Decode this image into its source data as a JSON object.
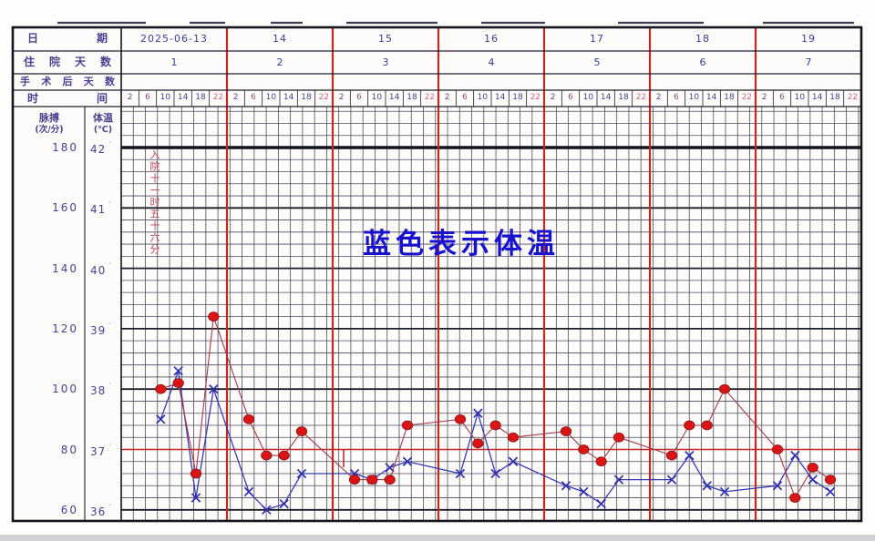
{
  "page": {
    "background": "#fdfdfb",
    "legend_text": "蓝色表示体温",
    "legend_color": "#1812cf"
  },
  "header": {
    "date_row_label": "日期",
    "hospital_days_label": "住院天数",
    "postop_days_label": "手术后天数",
    "time_row_label": "时间",
    "dates": [
      "2025-06-13",
      "14",
      "15",
      "16",
      "17",
      "18",
      "19"
    ],
    "hospital_days": [
      "1",
      "2",
      "3",
      "4",
      "5",
      "6",
      "7"
    ],
    "postop_days": [
      "",
      "",
      "",
      "",
      "",
      "",
      ""
    ],
    "time_slots": [
      "2",
      "6",
      "10",
      "14",
      "18",
      "22"
    ],
    "time_slot_colors": [
      "#6b4590",
      "#8a4a86",
      "#47408c",
      "#47408c",
      "#47408c",
      "#d4688e"
    ]
  },
  "axis": {
    "pulse_title": "脉搏",
    "pulse_unit": "(次/分)",
    "temp_title": "体温",
    "temp_unit": "(℃)",
    "pulse_ticks": [
      "180",
      "160",
      "140",
      "120",
      "100",
      "80",
      "60"
    ],
    "temp_ticks": [
      "42",
      "41",
      "40",
      "39",
      "38",
      "37",
      "36"
    ],
    "degree_mark": "˙"
  },
  "annotations": {
    "admission_note": "入院十一时五十六分",
    "admission_note_color": "#b5485f"
  },
  "chart_data": {
    "type": "line",
    "days": [
      "2025-06-13",
      "14",
      "15",
      "16",
      "17",
      "18",
      "19"
    ],
    "time_slots": [
      "2",
      "6",
      "10",
      "14",
      "18",
      "22"
    ],
    "temp_axis": {
      "label": "体温(℃)",
      "range": [
        36,
        42
      ],
      "major_step": 1,
      "minor_step": 0.2
    },
    "pulse_axis": {
      "label": "脉搏(次/分)",
      "range": [
        60,
        180
      ],
      "major_step": 20,
      "minor_step": 4
    },
    "reference_line": {
      "axis": "temp",
      "value": 37,
      "color": "#c62828"
    },
    "grid": {
      "minor": true,
      "day_divider_color": "#bf2a20"
    },
    "series": [
      {
        "name": "体温",
        "unit": "℃",
        "marker": "x",
        "color": "#2f2fae",
        "points": [
          {
            "day": 0,
            "slot": 2,
            "value": 37.5
          },
          {
            "day": 0,
            "slot": 3,
            "value": 38.3
          },
          {
            "day": 0,
            "slot": 4,
            "value": 36.2
          },
          {
            "day": 0,
            "slot": 5,
            "value": 38.0
          },
          {
            "day": 1,
            "slot": 1,
            "value": 36.3
          },
          {
            "day": 1,
            "slot": 2,
            "value": 36.0
          },
          {
            "day": 1,
            "slot": 3,
            "value": 36.1
          },
          {
            "day": 1,
            "slot": 4,
            "value": 36.6
          },
          {
            "day": 2,
            "slot": 1,
            "value": 36.6
          },
          {
            "day": 2,
            "slot": 2,
            "value": 36.5
          },
          {
            "day": 2,
            "slot": 3,
            "value": 36.7
          },
          {
            "day": 2,
            "slot": 4,
            "value": 36.8
          },
          {
            "day": 3,
            "slot": 1,
            "value": 36.6
          },
          {
            "day": 3,
            "slot": 2,
            "value": 37.6
          },
          {
            "day": 3,
            "slot": 3,
            "value": 36.6
          },
          {
            "day": 3,
            "slot": 4,
            "value": 36.8
          },
          {
            "day": 4,
            "slot": 1,
            "value": 36.4
          },
          {
            "day": 4,
            "slot": 2,
            "value": 36.3
          },
          {
            "day": 4,
            "slot": 3,
            "value": 36.1
          },
          {
            "day": 4,
            "slot": 4,
            "value": 36.5
          },
          {
            "day": 5,
            "slot": 1,
            "value": 36.5
          },
          {
            "day": 5,
            "slot": 2,
            "value": 36.9
          },
          {
            "day": 5,
            "slot": 3,
            "value": 36.4
          },
          {
            "day": 5,
            "slot": 4,
            "value": 36.3
          },
          {
            "day": 6,
            "slot": 1,
            "value": 36.4
          },
          {
            "day": 6,
            "slot": 2,
            "value": 36.9
          },
          {
            "day": 6,
            "slot": 3,
            "value": 36.5
          },
          {
            "day": 6,
            "slot": 4,
            "value": 36.3
          }
        ]
      },
      {
        "name": "脉搏",
        "unit": "次/分",
        "marker": "dot",
        "color": "#da1515",
        "points": [
          {
            "day": 0,
            "slot": 2,
            "value": 100
          },
          {
            "day": 0,
            "slot": 3,
            "value": 102
          },
          {
            "day": 0,
            "slot": 4,
            "value": 72
          },
          {
            "day": 0,
            "slot": 5,
            "value": 124
          },
          {
            "day": 1,
            "slot": 1,
            "value": 90
          },
          {
            "day": 1,
            "slot": 2,
            "value": 78
          },
          {
            "day": 1,
            "slot": 3,
            "value": 78
          },
          {
            "day": 1,
            "slot": 4,
            "value": 86
          },
          {
            "day": 2,
            "slot": 1,
            "value": 70
          },
          {
            "day": 2,
            "slot": 2,
            "value": 70
          },
          {
            "day": 2,
            "slot": 3,
            "value": 70
          },
          {
            "day": 2,
            "slot": 4,
            "value": 88
          },
          {
            "day": 3,
            "slot": 1,
            "value": 90
          },
          {
            "day": 3,
            "slot": 2,
            "value": 82
          },
          {
            "day": 3,
            "slot": 3,
            "value": 88
          },
          {
            "day": 3,
            "slot": 4,
            "value": 84
          },
          {
            "day": 4,
            "slot": 1,
            "value": 86
          },
          {
            "day": 4,
            "slot": 2,
            "value": 80
          },
          {
            "day": 4,
            "slot": 3,
            "value": 76
          },
          {
            "day": 4,
            "slot": 4,
            "value": 84
          },
          {
            "day": 5,
            "slot": 1,
            "value": 78
          },
          {
            "day": 5,
            "slot": 2,
            "value": 88
          },
          {
            "day": 5,
            "slot": 3,
            "value": 88
          },
          {
            "day": 5,
            "slot": 4,
            "value": 100
          },
          {
            "day": 6,
            "slot": 1,
            "value": 80
          },
          {
            "day": 6,
            "slot": 2,
            "value": 64
          },
          {
            "day": 6,
            "slot": 3,
            "value": 74
          },
          {
            "day": 6,
            "slot": 4,
            "value": 70
          }
        ]
      }
    ],
    "extra_marks": [
      {
        "type": "event-tick",
        "day": 2,
        "color": "#c03030"
      }
    ]
  }
}
